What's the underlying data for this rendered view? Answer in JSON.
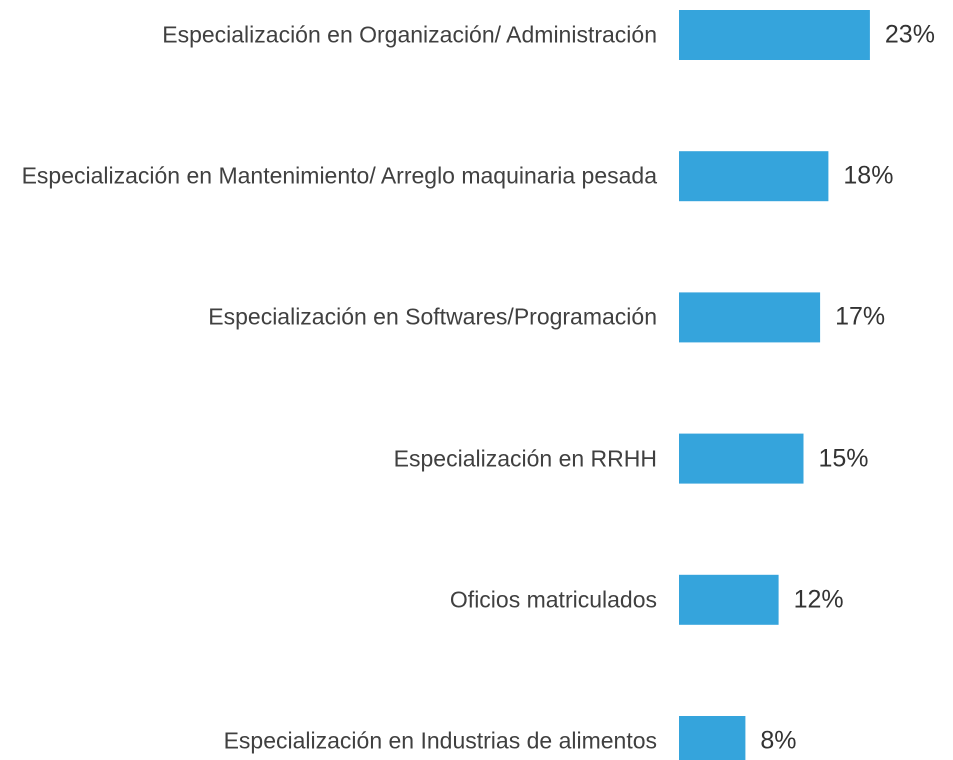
{
  "chart_data": {
    "type": "bar",
    "orientation": "horizontal",
    "categories": [
      "Especialización en Organización/ Administración",
      "Especialización en Mantenimiento/ Arreglo maquinaria pesada",
      "Especialización en Softwares/Programación",
      "Especialización en RRHH",
      "Oficios matriculados",
      "Especialización en Industrias de alimentos"
    ],
    "values": [
      23,
      18,
      17,
      15,
      12,
      8
    ],
    "value_labels": [
      "23%",
      "18%",
      "17%",
      "15%",
      "12%",
      "8%"
    ],
    "color": "#35a4dc"
  }
}
